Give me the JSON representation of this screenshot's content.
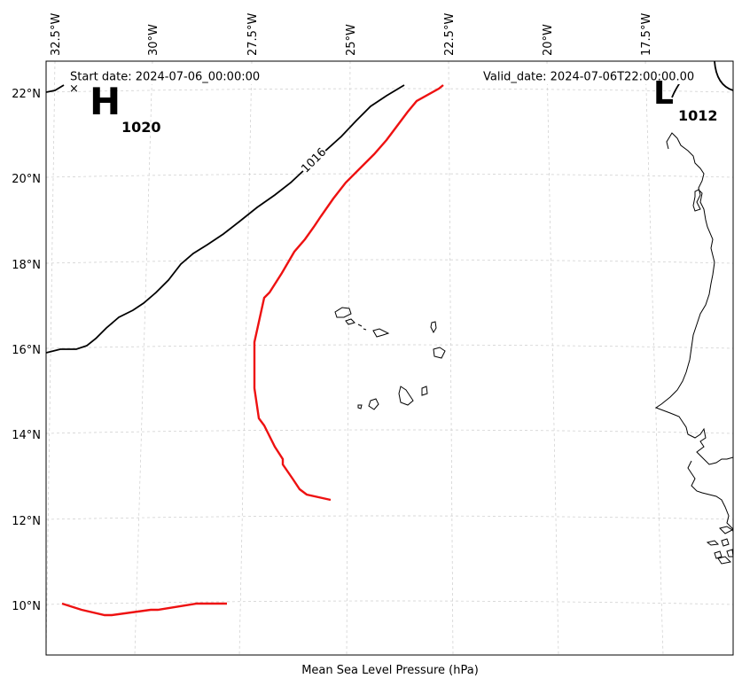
{
  "header": {
    "start_date": "Start date: 2024-07-06_00:00:00",
    "valid_date": "Valid_date: 2024-07-06T22:00:00.00"
  },
  "xlabel": "Mean Sea Level Pressure (hPa)",
  "lon_ticks": [
    "32.5°W",
    "30°W",
    "27.5°W",
    "25°W",
    "22.5°W",
    "20°W",
    "17.5°W"
  ],
  "lat_ticks": [
    "22°N",
    "20°N",
    "18°N",
    "16°N",
    "14°N",
    "12°N",
    "10°N"
  ],
  "pressure_centers": [
    {
      "symbol": "H",
      "value": "1020"
    },
    {
      "symbol": "L",
      "value": "1012"
    }
  ],
  "contour_labels": [
    "1016"
  ],
  "colors": {
    "isobar": "#000000",
    "track": "#ee1111",
    "grid": "#cccccc",
    "coast": "#000000"
  }
}
